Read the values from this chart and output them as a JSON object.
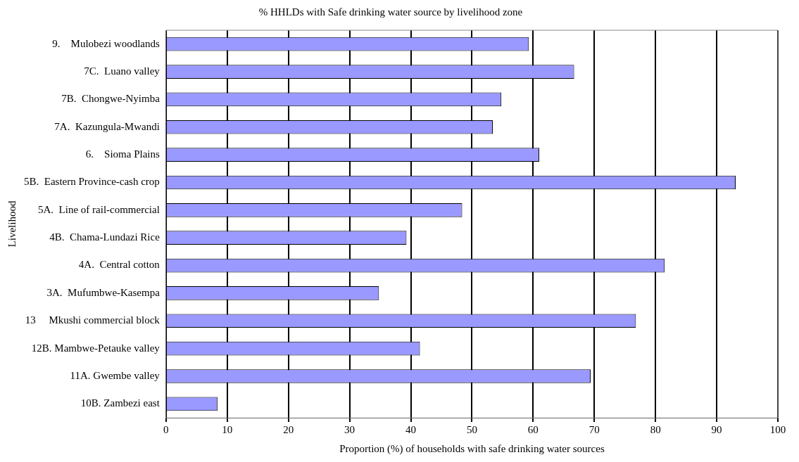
{
  "chart_data": {
    "type": "bar",
    "orientation": "horizontal",
    "title": "% HHLDs with Safe drinking water source by livelihood zone",
    "xlabel": "Proportion (%) of households with safe drinking water sources",
    "ylabel": "Livelihood",
    "categories": [
      "9.    Mulobezi woodlands",
      "7C.  Luano valley",
      "7B.  Chongwe-Nyimba",
      "7A.  Kazungula-Mwandi",
      "6.    Sioma Plains",
      "5B.  Eastern Province-cash crop",
      "5A.  Line of rail-commercial",
      "4B.  Chama-Lundazi Rice",
      "4A.  Central cotton",
      "3A.  Mufumbwe-Kasempa",
      "13     Mkushi commercial block",
      "12B. Mambwe-Petauke valley",
      "11A. Gwembe valley",
      "10B. Zambezi east"
    ],
    "values": [
      59.3,
      66.7,
      54.8,
      53.4,
      61.0,
      93.1,
      48.4,
      39.3,
      81.5,
      34.8,
      76.8,
      41.5,
      69.4,
      8.4
    ],
    "color": "#9999ff",
    "xlim": [
      0,
      100
    ],
    "xticks": [
      0,
      10,
      20,
      30,
      40,
      50,
      60,
      70,
      80,
      90,
      100
    ],
    "grid": "x",
    "legend": false
  }
}
